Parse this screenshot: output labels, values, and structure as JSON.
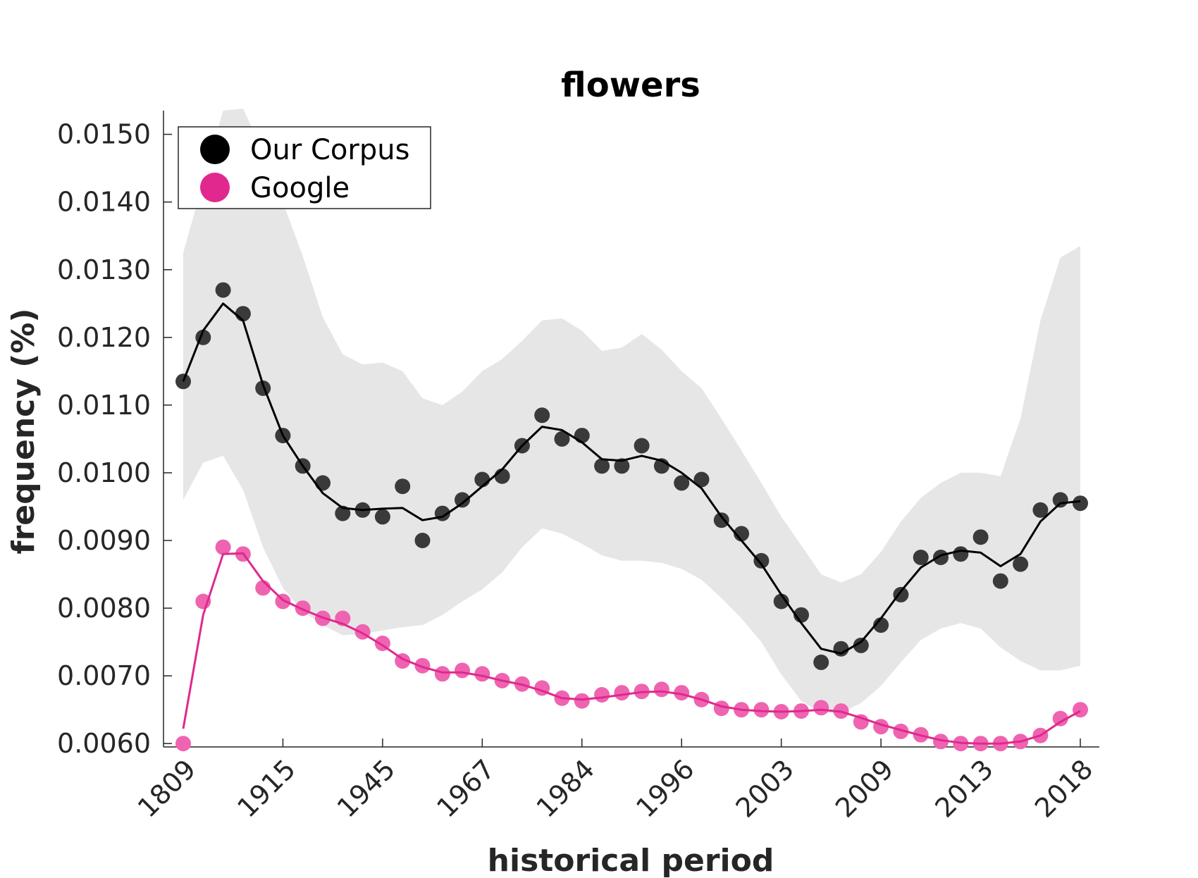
{
  "chart_data": {
    "type": "line",
    "title": "flowers",
    "xlabel": "historical period",
    "ylabel": "frequency (%)",
    "x_tick_labels": [
      "1809",
      "1915",
      "1945",
      "1967",
      "1984",
      "1996",
      "2003",
      "2009",
      "2013",
      "2018"
    ],
    "y_ticks": [
      "0.0060",
      "0.0070",
      "0.0080",
      "0.0090",
      "0.0100",
      "0.0110",
      "0.0120",
      "0.0130",
      "0.0140",
      "0.0150"
    ],
    "ylim": [
      0.00595,
      0.01535
    ],
    "n_points": 46,
    "legend_position": "top-left",
    "colors": {
      "corpus": "#000000",
      "corpus_points": "#3a3a3a",
      "band": "#e6e6e6",
      "google": "#e0288e",
      "google_points": "#ee64b0"
    },
    "series": [
      {
        "name": "Our Corpus",
        "points": [
          0.01135,
          0.012,
          0.0127,
          0.01235,
          0.01125,
          0.01055,
          0.0101,
          0.00985,
          0.0094,
          0.00945,
          0.00935,
          0.0098,
          0.009,
          0.0094,
          0.0096,
          0.0099,
          0.00995,
          0.0104,
          0.01085,
          0.0105,
          0.01055,
          0.0101,
          0.0101,
          0.0104,
          0.0101,
          0.00985,
          0.0099,
          0.0093,
          0.0091,
          0.0087,
          0.0081,
          0.0079,
          0.0072,
          0.0074,
          0.00745,
          0.00775,
          0.0082,
          0.00875,
          0.00875,
          0.0088,
          0.00905,
          0.0084,
          0.00865,
          0.00945,
          0.0096,
          0.00955
        ],
        "smoothed": [
          0.01135,
          0.0121,
          0.0125,
          0.01225,
          0.0113,
          0.01055,
          0.0101,
          0.0097,
          0.00948,
          0.00945,
          0.00947,
          0.00948,
          0.0093,
          0.00935,
          0.00955,
          0.0098,
          0.01005,
          0.0104,
          0.01068,
          0.01063,
          0.01045,
          0.0102,
          0.01018,
          0.01025,
          0.01018,
          0.01,
          0.00977,
          0.00935,
          0.009,
          0.00865,
          0.0082,
          0.00778,
          0.0074,
          0.00733,
          0.0075,
          0.00785,
          0.00825,
          0.0086,
          0.00878,
          0.00885,
          0.00882,
          0.00862,
          0.0088,
          0.00928,
          0.00955,
          0.00958
        ],
        "band_upper": [
          0.01325,
          0.0143,
          0.01535,
          0.01538,
          0.01475,
          0.014,
          0.0132,
          0.0123,
          0.01175,
          0.0116,
          0.01163,
          0.0115,
          0.0111,
          0.011,
          0.0112,
          0.0115,
          0.01168,
          0.01195,
          0.01225,
          0.01228,
          0.0121,
          0.0118,
          0.01185,
          0.01205,
          0.01182,
          0.0115,
          0.01125,
          0.0108,
          0.01033,
          0.00985,
          0.00935,
          0.00893,
          0.0085,
          0.00838,
          0.0085,
          0.00883,
          0.00928,
          0.00963,
          0.00985,
          0.01,
          0.01,
          0.00995,
          0.0108,
          0.01225,
          0.01318,
          0.01335
        ],
        "band_lower": [
          0.0096,
          0.01015,
          0.01025,
          0.00975,
          0.0089,
          0.0083,
          0.00795,
          0.00775,
          0.0076,
          0.00762,
          0.00767,
          0.00772,
          0.00775,
          0.0079,
          0.0081,
          0.00828,
          0.00853,
          0.0089,
          0.00918,
          0.0091,
          0.00895,
          0.00878,
          0.0087,
          0.0087,
          0.00867,
          0.00858,
          0.00842,
          0.00815,
          0.00785,
          0.0075,
          0.00702,
          0.00663,
          0.00645,
          0.00645,
          0.0066,
          0.00685,
          0.0072,
          0.00753,
          0.0077,
          0.00778,
          0.0077,
          0.00742,
          0.00722,
          0.00708,
          0.00708,
          0.00715
        ]
      },
      {
        "name": "Google",
        "points": [
          0.006,
          0.0081,
          0.0089,
          0.0088,
          0.0083,
          0.0081,
          0.008,
          0.00785,
          0.00785,
          0.00765,
          0.00748,
          0.00722,
          0.00715,
          0.00703,
          0.00708,
          0.00703,
          0.00693,
          0.00688,
          0.00682,
          0.00667,
          0.00663,
          0.00672,
          0.00675,
          0.00677,
          0.0068,
          0.00675,
          0.00665,
          0.00652,
          0.0065,
          0.0065,
          0.00647,
          0.00648,
          0.00653,
          0.00648,
          0.00632,
          0.00625,
          0.00618,
          0.00613,
          0.00603,
          0.006,
          0.006,
          0.006,
          0.00603,
          0.00612,
          0.00637,
          0.0065
        ],
        "smoothed": [
          0.00622,
          0.0079,
          0.0088,
          0.00881,
          0.0084,
          0.00812,
          0.00798,
          0.00786,
          0.00777,
          0.00763,
          0.00745,
          0.00725,
          0.00713,
          0.00705,
          0.00705,
          0.007,
          0.00693,
          0.00687,
          0.00678,
          0.00667,
          0.00665,
          0.00668,
          0.00672,
          0.00676,
          0.00677,
          0.00673,
          0.00665,
          0.00655,
          0.0065,
          0.00648,
          0.00647,
          0.00648,
          0.0065,
          0.00647,
          0.00638,
          0.00628,
          0.0062,
          0.00612,
          0.00605,
          0.00601,
          0.006,
          0.006,
          0.00603,
          0.00612,
          0.00632,
          0.00648
        ]
      }
    ]
  }
}
